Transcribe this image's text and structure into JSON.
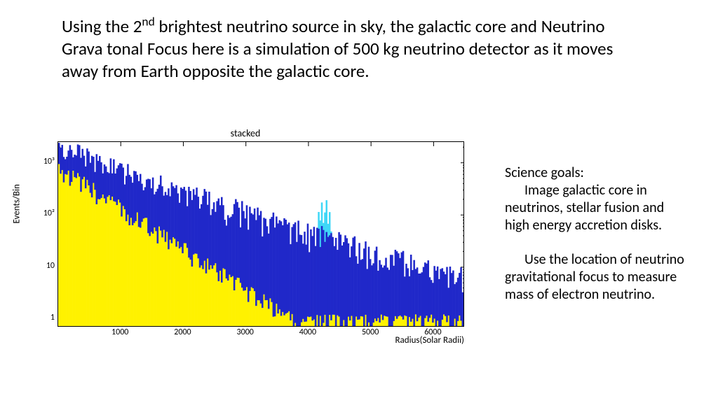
{
  "mainText": {
    "pre": "Using the 2",
    "sup": "nd",
    "post": " brightest neutrino source in sky, the galactic core and Neutrino Grava tonal Focus here is a simulation of 500 kg neutrino detector as it moves away from Earth opposite the galactic core."
  },
  "chart": {
    "type": "histogram",
    "title": "stacked",
    "xlabel": "Radius(Solar Radii)",
    "ylabel": "Events/Bin",
    "xlim": [
      0,
      6500
    ],
    "ylim": [
      0.7,
      2500
    ],
    "yscale": "log",
    "yticks": [
      1,
      10,
      100,
      1000
    ],
    "ytick_labels": [
      "1",
      "10",
      "10²",
      "10³"
    ],
    "xticks": [
      1000,
      2000,
      3000,
      4000,
      5000,
      6000
    ],
    "xtick_labels": [
      "1000",
      "2000",
      "3000",
      "4000",
      "5000",
      "6000"
    ],
    "nbins": 260,
    "peak_x": 4250,
    "peak_width": 160,
    "peak_height_cyan": 240,
    "colors": {
      "series_yellow": "#fff200",
      "series_blue": "#2028c9",
      "series_cyan": "#3fd7f7",
      "frame": "#000000",
      "background": "#ffffff"
    },
    "curve": {
      "yellow_start": 1200,
      "yellow_decay": 0.0018,
      "blue_start": 2200,
      "blue_decay": 0.00085,
      "noise_yellow": 0.55,
      "noise_blue": 0.75
    },
    "title_fontsize": 14,
    "label_fontsize": 13,
    "tick_fontsize": 12
  },
  "sidebar": {
    "heading": "Science goals:",
    "p1": "Image galactic core in neutrinos, stellar fusion and high energy accretion disks.",
    "p2": "Use the location of neutrino gravitational focus to measure mass of electron neutrino."
  }
}
